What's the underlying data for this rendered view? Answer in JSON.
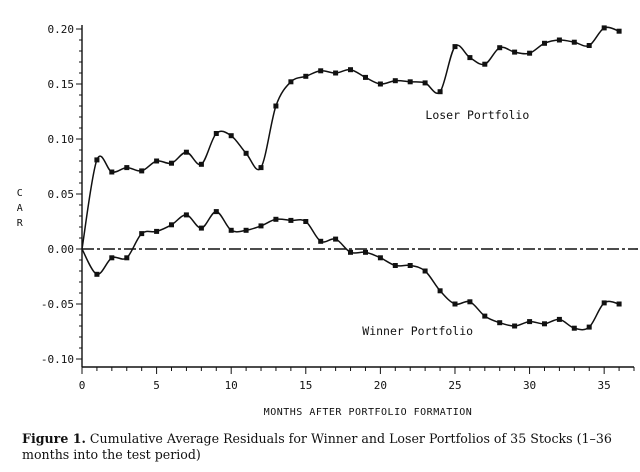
{
  "chart_data": {
    "type": "line",
    "title": "",
    "xlabel": "MONTHS AFTER PORTFOLIO FORMATION",
    "ylabel": "CAR",
    "xlim": [
      0,
      37
    ],
    "ylim": [
      -0.1,
      0.2
    ],
    "x_ticks": [
      0,
      5,
      10,
      15,
      20,
      25,
      30,
      35
    ],
    "x_tick_labels": [
      "0",
      "5",
      "10",
      "15",
      "20",
      "25",
      "30",
      "35"
    ],
    "y_ticks": [
      0.2,
      0.15,
      0.1,
      0.05,
      0.0,
      -0.05,
      -0.1
    ],
    "y_tick_labels": [
      "0.20",
      "0.15",
      "0.10",
      "0.05",
      "0.00",
      "-0.05",
      "-0.10"
    ],
    "reference_line": 0.0,
    "x": [
      0,
      1,
      2,
      3,
      4,
      5,
      6,
      7,
      8,
      9,
      10,
      11,
      12,
      13,
      14,
      15,
      16,
      17,
      18,
      19,
      20,
      21,
      22,
      23,
      24,
      25,
      26,
      27,
      28,
      29,
      30,
      31,
      32,
      33,
      34,
      35,
      36
    ],
    "series": [
      {
        "name": "Loser Portfolio",
        "values": [
          0.0,
          0.081,
          0.07,
          0.074,
          0.071,
          0.08,
          0.078,
          0.088,
          0.077,
          0.105,
          0.103,
          0.087,
          0.074,
          0.13,
          0.152,
          0.157,
          0.162,
          0.16,
          0.163,
          0.156,
          0.15,
          0.153,
          0.152,
          0.151,
          0.143,
          0.184,
          0.174,
          0.168,
          0.183,
          0.179,
          0.178,
          0.187,
          0.19,
          0.188,
          0.185,
          0.201,
          0.198
        ]
      },
      {
        "name": "Winner Portfolio",
        "values": [
          0.0,
          -0.023,
          -0.008,
          -0.008,
          0.014,
          0.016,
          0.022,
          0.031,
          0.019,
          0.034,
          0.017,
          0.017,
          0.021,
          0.027,
          0.026,
          0.025,
          0.007,
          0.009,
          -0.003,
          -0.003,
          -0.008,
          -0.015,
          -0.015,
          -0.02,
          -0.038,
          -0.05,
          -0.048,
          -0.061,
          -0.067,
          -0.07,
          -0.066,
          -0.068,
          -0.064,
          -0.072,
          -0.071,
          -0.049,
          -0.05
        ]
      }
    ],
    "annotations": [
      {
        "text": "Loser Portfolio",
        "x": 26.5,
        "y": 0.118
      },
      {
        "text": "Winner Portfolio",
        "x": 22.5,
        "y": -0.078
      }
    ]
  },
  "axis": {
    "ylabel_letters": [
      "C",
      "A",
      "R"
    ]
  },
  "caption": {
    "figure_label": "Figure 1.",
    "text": " Cumulative Average Residuals for Winner and Loser Portfolios of 35 Stocks (1–36 months into the test period)"
  }
}
